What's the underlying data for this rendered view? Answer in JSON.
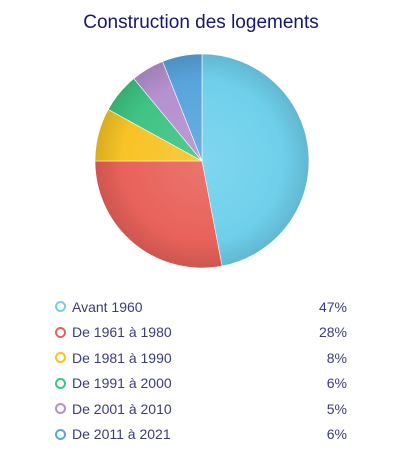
{
  "chart_data": {
    "type": "pie",
    "title": "Construction des logements",
    "slices": [
      {
        "label": "Avant 1960",
        "value": 47,
        "display": "47%",
        "color": "#6fd0ec"
      },
      {
        "label": "De 1961 à 1980",
        "value": 28,
        "display": "28%",
        "color": "#e8625a"
      },
      {
        "label": "De 1981 à 1990",
        "value": 8,
        "display": "8%",
        "color": "#f7c325"
      },
      {
        "label": "De 1991 à 2000",
        "value": 6,
        "display": "6%",
        "color": "#3fc383"
      },
      {
        "label": "De 2001 à 2010",
        "value": 5,
        "display": "5%",
        "color": "#b490cf"
      },
      {
        "label": "De 2011 à 2021",
        "value": 6,
        "display": "6%",
        "color": "#58a4dc"
      }
    ],
    "legend_position": "bottom"
  }
}
